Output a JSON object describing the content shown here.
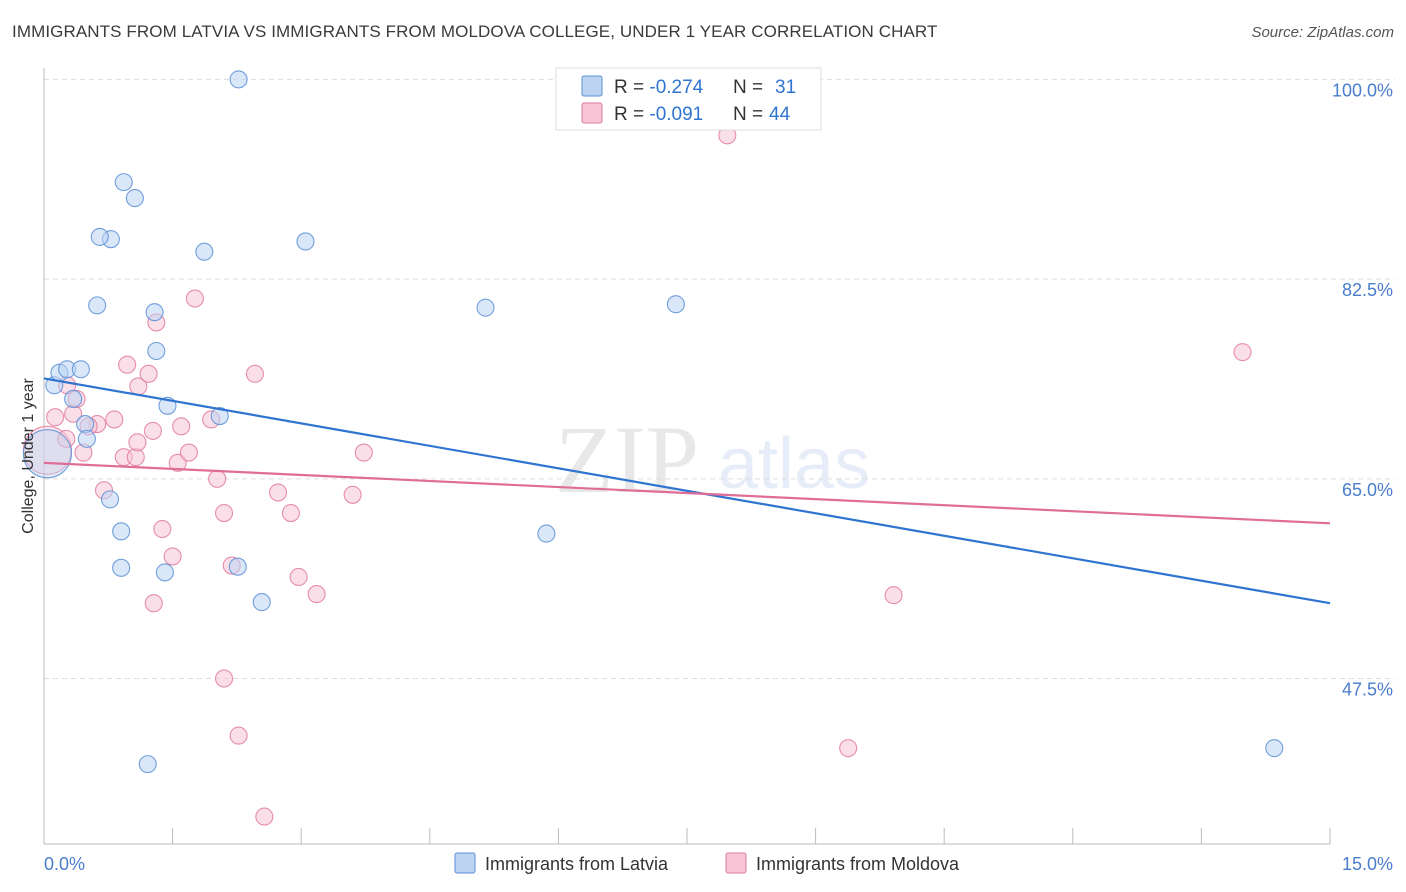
{
  "header": {
    "title": "IMMIGRANTS FROM LATVIA VS IMMIGRANTS FROM MOLDOVA COLLEGE, UNDER 1 YEAR CORRELATION CHART",
    "source": "Source: ZipAtlas.com"
  },
  "watermark": {
    "zip": "ZIP",
    "atlas": "atlas"
  },
  "colors": {
    "latvia_fill": "#bcd4f2",
    "latvia_stroke": "#5b8fd6",
    "latvia_line": "#2f74d0",
    "moldova_fill": "#f7c5d6",
    "moldova_stroke": "#e07ba0",
    "moldova_line": "#e06c98",
    "axis_label": "#4a7dcc",
    "grid": "#dddddd"
  },
  "legend": {
    "rows": [
      {
        "r_label": "R = ",
        "r_value": "-0.274",
        "n_label": "N = ",
        "n_value": "31"
      },
      {
        "r_label": "R = ",
        "r_value": "-0.091",
        "n_label": "N = ",
        "n_value": "44"
      }
    ]
  },
  "chart_data": {
    "type": "scatter",
    "title": "IMMIGRANTS FROM LATVIA VS IMMIGRANTS FROM MOLDOVA COLLEGE, UNDER 1 YEAR CORRELATION CHART",
    "xlabel": "",
    "ylabel": "College, Under 1 year",
    "xlim": [
      0,
      15
    ],
    "ylim": [
      33,
      101
    ],
    "x_tick_labels": [
      "0.0%",
      "15.0%"
    ],
    "y_ticks": [
      47.5,
      65.0,
      82.5,
      100.0
    ],
    "y_tick_labels": [
      "47.5%",
      "65.0%",
      "82.5%",
      "100.0%"
    ],
    "grid": true,
    "legend_position": "bottom",
    "series": [
      {
        "name": "Immigrants from Latvia",
        "r": -0.274,
        "n": 31,
        "trend": {
          "x": [
            0.0,
            15.0
          ],
          "y": [
            73.8,
            54.1
          ]
        },
        "points": [
          {
            "x": 0.04,
            "y": 67.2,
            "big": true
          },
          {
            "x": 0.12,
            "y": 73.2
          },
          {
            "x": 0.18,
            "y": 74.3
          },
          {
            "x": 0.27,
            "y": 74.6
          },
          {
            "x": 0.43,
            "y": 74.6
          },
          {
            "x": 0.34,
            "y": 72.0
          },
          {
            "x": 0.48,
            "y": 69.8
          },
          {
            "x": 0.5,
            "y": 68.5
          },
          {
            "x": 0.62,
            "y": 80.2
          },
          {
            "x": 0.77,
            "y": 63.2
          },
          {
            "x": 0.93,
            "y": 91.0
          },
          {
            "x": 1.06,
            "y": 89.6
          },
          {
            "x": 0.78,
            "y": 86.0
          },
          {
            "x": 0.65,
            "y": 86.2
          },
          {
            "x": 1.31,
            "y": 76.2
          },
          {
            "x": 1.44,
            "y": 71.4
          },
          {
            "x": 1.29,
            "y": 79.6
          },
          {
            "x": 0.9,
            "y": 57.2
          },
          {
            "x": 0.9,
            "y": 60.4
          },
          {
            "x": 1.41,
            "y": 56.8
          },
          {
            "x": 1.87,
            "y": 84.9
          },
          {
            "x": 2.05,
            "y": 70.5
          },
          {
            "x": 2.26,
            "y": 57.3
          },
          {
            "x": 2.27,
            "y": 100.0
          },
          {
            "x": 2.54,
            "y": 54.2
          },
          {
            "x": 3.05,
            "y": 85.8
          },
          {
            "x": 1.21,
            "y": 40.0
          },
          {
            "x": 5.15,
            "y": 80.0
          },
          {
            "x": 5.86,
            "y": 60.2
          },
          {
            "x": 7.37,
            "y": 80.3
          },
          {
            "x": 14.35,
            "y": 41.4
          }
        ]
      },
      {
        "name": "Immigrants from Moldova",
        "r": -0.091,
        "n": 44,
        "trend": {
          "x": [
            0.0,
            15.0
          ],
          "y": [
            66.4,
            61.1
          ]
        },
        "points": [
          {
            "x": 0.04,
            "y": 67.5,
            "big": true
          },
          {
            "x": 0.13,
            "y": 70.4
          },
          {
            "x": 0.26,
            "y": 68.5
          },
          {
            "x": 0.34,
            "y": 70.7
          },
          {
            "x": 0.38,
            "y": 72.0
          },
          {
            "x": 0.46,
            "y": 67.3
          },
          {
            "x": 0.62,
            "y": 69.8
          },
          {
            "x": 0.7,
            "y": 64.0
          },
          {
            "x": 0.82,
            "y": 70.2
          },
          {
            "x": 0.93,
            "y": 66.9
          },
          {
            "x": 1.07,
            "y": 66.9
          },
          {
            "x": 0.97,
            "y": 75.0
          },
          {
            "x": 1.1,
            "y": 73.1
          },
          {
            "x": 1.22,
            "y": 74.2
          },
          {
            "x": 1.27,
            "y": 69.2
          },
          {
            "x": 1.38,
            "y": 60.6
          },
          {
            "x": 1.31,
            "y": 78.7
          },
          {
            "x": 1.56,
            "y": 66.4
          },
          {
            "x": 1.6,
            "y": 69.6
          },
          {
            "x": 1.69,
            "y": 67.3
          },
          {
            "x": 1.5,
            "y": 58.2
          },
          {
            "x": 1.28,
            "y": 54.1
          },
          {
            "x": 1.76,
            "y": 80.8
          },
          {
            "x": 1.95,
            "y": 70.2
          },
          {
            "x": 2.02,
            "y": 65.0
          },
          {
            "x": 2.1,
            "y": 62.0
          },
          {
            "x": 2.19,
            "y": 57.4
          },
          {
            "x": 2.1,
            "y": 47.5
          },
          {
            "x": 2.27,
            "y": 42.5
          },
          {
            "x": 2.46,
            "y": 74.2
          },
          {
            "x": 2.57,
            "y": 35.4
          },
          {
            "x": 2.73,
            "y": 63.8
          },
          {
            "x": 2.88,
            "y": 62.0
          },
          {
            "x": 2.97,
            "y": 56.4
          },
          {
            "x": 3.18,
            "y": 54.9
          },
          {
            "x": 3.6,
            "y": 63.6
          },
          {
            "x": 3.73,
            "y": 67.3
          },
          {
            "x": 7.97,
            "y": 95.1
          },
          {
            "x": 9.38,
            "y": 41.4
          },
          {
            "x": 9.91,
            "y": 54.8
          },
          {
            "x": 13.98,
            "y": 76.1
          },
          {
            "x": 1.09,
            "y": 68.2
          },
          {
            "x": 0.52,
            "y": 69.6
          },
          {
            "x": 0.27,
            "y": 73.2
          }
        ]
      }
    ]
  }
}
